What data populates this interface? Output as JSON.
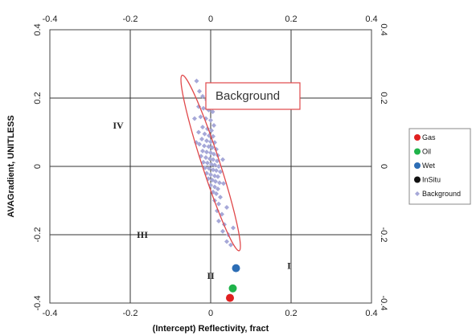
{
  "chart_data": {
    "type": "scatter",
    "xlabel": "(Intercept) Reflectivity, fract",
    "ylabel": "AVAGradient, UNITLESS",
    "xlim": [
      -0.4,
      0.4
    ],
    "ylim": [
      -0.4,
      0.4
    ],
    "x_ticks": [
      "-0.4",
      "-0.2",
      "0",
      "0.2",
      "0.4"
    ],
    "y_ticks_left": [
      "0.4",
      "0.2",
      "0",
      "-0.2",
      "-0.4"
    ],
    "y_ticks_right": [
      "0.4",
      "0.2",
      "0",
      "-0.2",
      "-0.4"
    ],
    "grid": true,
    "quadrants": [
      {
        "label": "IV",
        "x": -0.23,
        "y": 0.12
      },
      {
        "label": "III",
        "x": -0.17,
        "y": -0.2
      },
      {
        "label": "II",
        "x": 0.0,
        "y": -0.32
      },
      {
        "label": "I",
        "x": 0.195,
        "y": -0.29
      }
    ],
    "annotation": {
      "text": "Background"
    },
    "ellipse": {
      "center_x": 0.0,
      "center_y": 0.01,
      "major_half_length": 0.27,
      "minor_half_length": 0.022
    },
    "series": [
      {
        "name": "Gas",
        "color": "#e02020",
        "points": [
          [
            0.048,
            -0.385
          ]
        ]
      },
      {
        "name": "Oil",
        "color": "#1fb34a",
        "points": [
          [
            0.055,
            -0.357
          ]
        ]
      },
      {
        "name": "Wet",
        "color": "#2c6db5",
        "points": [
          [
            0.063,
            -0.298
          ]
        ]
      },
      {
        "name": "InSitu",
        "color": "#111111",
        "points": []
      },
      {
        "name": "Background",
        "color": "#a6a8d8",
        "points": [
          [
            -0.035,
            0.25
          ],
          [
            -0.028,
            0.22
          ],
          [
            -0.02,
            0.205
          ],
          [
            -0.01,
            0.195
          ],
          [
            0.0,
            0.2
          ],
          [
            -0.03,
            0.175
          ],
          [
            -0.018,
            0.17
          ],
          [
            -0.005,
            0.165
          ],
          [
            0.005,
            0.16
          ],
          [
            -0.025,
            0.145
          ],
          [
            -0.012,
            0.14
          ],
          [
            0.0,
            0.135
          ],
          [
            0.008,
            0.12
          ],
          [
            -0.02,
            0.115
          ],
          [
            -0.008,
            0.11
          ],
          [
            0.002,
            0.105
          ],
          [
            -0.03,
            0.1
          ],
          [
            -0.015,
            0.095
          ],
          [
            -0.004,
            0.09
          ],
          [
            0.006,
            0.088
          ],
          [
            -0.022,
            0.08
          ],
          [
            -0.01,
            0.075
          ],
          [
            0.0,
            0.072
          ],
          [
            0.01,
            0.07
          ],
          [
            -0.028,
            0.065
          ],
          [
            -0.016,
            0.06
          ],
          [
            -0.005,
            0.058
          ],
          [
            0.004,
            0.055
          ],
          [
            0.014,
            0.05
          ],
          [
            -0.02,
            0.045
          ],
          [
            -0.01,
            0.042
          ],
          [
            0.0,
            0.04
          ],
          [
            0.008,
            0.036
          ],
          [
            0.018,
            0.032
          ],
          [
            -0.024,
            0.03
          ],
          [
            -0.012,
            0.026
          ],
          [
            -0.002,
            0.022
          ],
          [
            0.006,
            0.02
          ],
          [
            0.016,
            0.016
          ],
          [
            -0.018,
            0.012
          ],
          [
            -0.008,
            0.01
          ],
          [
            0.002,
            0.006
          ],
          [
            0.01,
            0.004
          ],
          [
            0.02,
            0.0
          ],
          [
            -0.014,
            -0.004
          ],
          [
            -0.004,
            -0.006
          ],
          [
            0.006,
            -0.01
          ],
          [
            0.014,
            -0.012
          ],
          [
            0.024,
            -0.016
          ],
          [
            -0.01,
            -0.02
          ],
          [
            0.0,
            -0.024
          ],
          [
            0.01,
            -0.028
          ],
          [
            0.018,
            -0.03
          ],
          [
            -0.006,
            -0.036
          ],
          [
            0.004,
            -0.04
          ],
          [
            0.012,
            -0.044
          ],
          [
            0.022,
            -0.048
          ],
          [
            0.0,
            -0.055
          ],
          [
            0.01,
            -0.06
          ],
          [
            0.018,
            -0.066
          ],
          [
            0.006,
            -0.075
          ],
          [
            0.014,
            -0.08
          ],
          [
            0.024,
            -0.09
          ],
          [
            0.01,
            -0.1
          ],
          [
            0.02,
            -0.11
          ],
          [
            0.016,
            -0.13
          ],
          [
            0.028,
            -0.14
          ],
          [
            0.02,
            -0.16
          ],
          [
            0.034,
            -0.17
          ],
          [
            0.03,
            -0.19
          ],
          [
            0.044,
            -0.2
          ],
          [
            0.04,
            -0.22
          ],
          [
            0.05,
            -0.23
          ],
          [
            0.056,
            -0.18
          ],
          [
            -0.04,
            0.14
          ],
          [
            -0.036,
            0.07
          ],
          [
            0.03,
            0.02
          ],
          [
            0.032,
            -0.05
          ],
          [
            0.04,
            -0.12
          ],
          [
            -0.002,
            0.18
          ]
        ]
      }
    ],
    "legend": {
      "placement": "right",
      "entries": [
        "Gas",
        "Oil",
        "Wet",
        "InSitu",
        "Background"
      ]
    }
  }
}
